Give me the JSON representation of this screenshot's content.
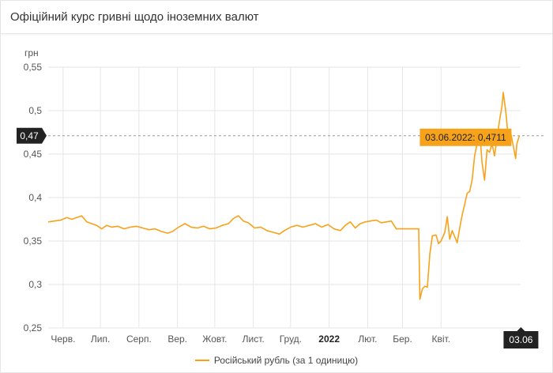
{
  "title": "Офіційний курс гривні щодо іноземних валют",
  "colors": {
    "series": "#f7a21b",
    "grid": "#e6e6e6",
    "badge": "#222222",
    "tooltip_bg": "#f7a21b"
  },
  "chart_data": {
    "type": "line",
    "title": "",
    "xlabel": "",
    "ylabel": "грн",
    "ylim": [
      0.25,
      0.55
    ],
    "yticks": [
      0.25,
      0.3,
      0.35,
      0.4,
      0.45,
      0.5,
      0.55
    ],
    "ytick_labels": [
      "0,25",
      "0,3",
      "0,35",
      "0,4",
      "0,45",
      "0,5",
      "0,55"
    ],
    "xlim": [
      "2021-05-20",
      "2022-06-04"
    ],
    "xticks": [
      {
        "date": "2021-06-01",
        "label": "Черв.",
        "bold": false
      },
      {
        "date": "2021-07-01",
        "label": "Лип.",
        "bold": false
      },
      {
        "date": "2021-08-01",
        "label": "Серп.",
        "bold": false
      },
      {
        "date": "2021-09-01",
        "label": "Вер.",
        "bold": false
      },
      {
        "date": "2021-10-01",
        "label": "Жовт.",
        "bold": false
      },
      {
        "date": "2021-11-01",
        "label": "Лист.",
        "bold": false
      },
      {
        "date": "2021-12-01",
        "label": "Груд.",
        "bold": false
      },
      {
        "date": "2022-01-01",
        "label": "2022",
        "bold": true
      },
      {
        "date": "2022-02-01",
        "label": "Лют.",
        "bold": false
      },
      {
        "date": "2022-03-01",
        "label": "Бер.",
        "bold": false
      },
      {
        "date": "2022-04-01",
        "label": "Квіт.",
        "bold": false
      }
    ],
    "grid": true,
    "legend_position": "bottom-center",
    "series": [
      {
        "name": "Російський рубль (за 1 одиницю)",
        "points": [
          [
            "2021-05-20",
            0.372
          ],
          [
            "2021-05-25",
            0.373
          ],
          [
            "2021-05-30",
            0.374
          ],
          [
            "2021-06-04",
            0.377
          ],
          [
            "2021-06-08",
            0.375
          ],
          [
            "2021-06-12",
            0.377
          ],
          [
            "2021-06-16",
            0.379
          ],
          [
            "2021-06-20",
            0.372
          ],
          [
            "2021-06-24",
            0.37
          ],
          [
            "2021-06-28",
            0.368
          ],
          [
            "2021-07-02",
            0.364
          ],
          [
            "2021-07-06",
            0.368
          ],
          [
            "2021-07-10",
            0.366
          ],
          [
            "2021-07-15",
            0.367
          ],
          [
            "2021-07-20",
            0.364
          ],
          [
            "2021-07-25",
            0.366
          ],
          [
            "2021-07-30",
            0.367
          ],
          [
            "2021-08-04",
            0.365
          ],
          [
            "2021-08-09",
            0.363
          ],
          [
            "2021-08-14",
            0.364
          ],
          [
            "2021-08-19",
            0.361
          ],
          [
            "2021-08-24",
            0.359
          ],
          [
            "2021-08-28",
            0.361
          ],
          [
            "2021-09-02",
            0.366
          ],
          [
            "2021-09-07",
            0.37
          ],
          [
            "2021-09-12",
            0.366
          ],
          [
            "2021-09-17",
            0.365
          ],
          [
            "2021-09-22",
            0.367
          ],
          [
            "2021-09-27",
            0.364
          ],
          [
            "2021-10-02",
            0.365
          ],
          [
            "2021-10-07",
            0.368
          ],
          [
            "2021-10-12",
            0.37
          ],
          [
            "2021-10-16",
            0.376
          ],
          [
            "2021-10-20",
            0.379
          ],
          [
            "2021-10-24",
            0.373
          ],
          [
            "2021-10-28",
            0.371
          ],
          [
            "2021-11-02",
            0.365
          ],
          [
            "2021-11-07",
            0.366
          ],
          [
            "2021-11-12",
            0.362
          ],
          [
            "2021-11-17",
            0.36
          ],
          [
            "2021-11-22",
            0.358
          ],
          [
            "2021-11-26",
            0.362
          ],
          [
            "2021-12-01",
            0.366
          ],
          [
            "2021-12-06",
            0.368
          ],
          [
            "2021-12-11",
            0.366
          ],
          [
            "2021-12-16",
            0.368
          ],
          [
            "2021-12-21",
            0.37
          ],
          [
            "2021-12-26",
            0.366
          ],
          [
            "2021-12-31",
            0.369
          ],
          [
            "2022-01-05",
            0.364
          ],
          [
            "2022-01-10",
            0.362
          ],
          [
            "2022-01-14",
            0.368
          ],
          [
            "2022-01-18",
            0.372
          ],
          [
            "2022-01-22",
            0.365
          ],
          [
            "2022-01-26",
            0.37
          ],
          [
            "2022-01-30",
            0.372
          ],
          [
            "2022-02-03",
            0.373
          ],
          [
            "2022-02-08",
            0.374
          ],
          [
            "2022-02-12",
            0.371
          ],
          [
            "2022-02-16",
            0.372
          ],
          [
            "2022-02-20",
            0.373
          ],
          [
            "2022-02-24",
            0.364
          ],
          [
            "2022-03-01",
            0.364
          ],
          [
            "2022-03-06",
            0.364
          ],
          [
            "2022-03-11",
            0.364
          ],
          [
            "2022-03-14",
            0.364
          ],
          [
            "2022-03-15",
            0.283
          ],
          [
            "2022-03-17",
            0.295
          ],
          [
            "2022-03-19",
            0.298
          ],
          [
            "2022-03-21",
            0.297
          ],
          [
            "2022-03-23",
            0.335
          ],
          [
            "2022-03-25",
            0.356
          ],
          [
            "2022-03-28",
            0.357
          ],
          [
            "2022-03-30",
            0.347
          ],
          [
            "2022-04-01",
            0.35
          ],
          [
            "2022-04-04",
            0.36
          ],
          [
            "2022-04-06",
            0.378
          ],
          [
            "2022-04-08",
            0.352
          ],
          [
            "2022-04-10",
            0.362
          ],
          [
            "2022-04-12",
            0.355
          ],
          [
            "2022-04-14",
            0.348
          ],
          [
            "2022-04-16",
            0.365
          ],
          [
            "2022-04-18",
            0.38
          ],
          [
            "2022-04-20",
            0.392
          ],
          [
            "2022-04-22",
            0.405
          ],
          [
            "2022-04-24",
            0.407
          ],
          [
            "2022-04-26",
            0.42
          ],
          [
            "2022-04-28",
            0.448
          ],
          [
            "2022-04-30",
            0.462
          ],
          [
            "2022-05-02",
            0.478
          ],
          [
            "2022-05-04",
            0.44
          ],
          [
            "2022-05-06",
            0.42
          ],
          [
            "2022-05-08",
            0.455
          ],
          [
            "2022-05-10",
            0.452
          ],
          [
            "2022-05-12",
            0.462
          ],
          [
            "2022-05-14",
            0.448
          ],
          [
            "2022-05-16",
            0.468
          ],
          [
            "2022-05-18",
            0.488
          ],
          [
            "2022-05-20",
            0.505
          ],
          [
            "2022-05-21",
            0.521
          ],
          [
            "2022-05-23",
            0.5
          ],
          [
            "2022-05-25",
            0.47
          ],
          [
            "2022-05-27",
            0.475
          ],
          [
            "2022-05-29",
            0.46
          ],
          [
            "2022-05-31",
            0.445
          ],
          [
            "2022-06-01",
            0.462
          ],
          [
            "2022-06-03",
            0.4711
          ]
        ]
      }
    ],
    "current_value_badge": "0,47",
    "current_date_badge": "03.06",
    "tooltip": "03.06.2022: 0,4711"
  }
}
